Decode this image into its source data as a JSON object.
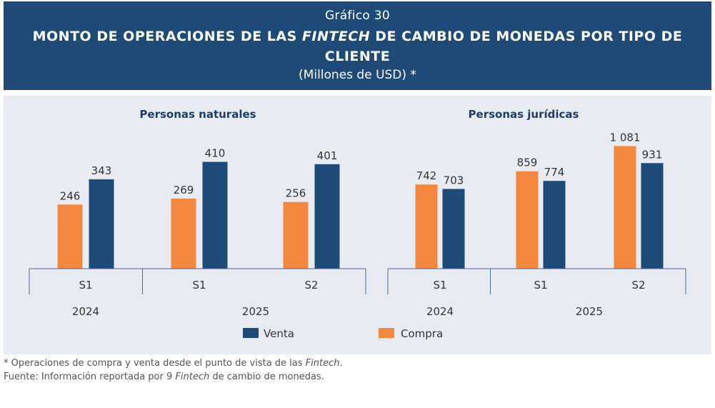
{
  "header": {
    "number": "Gráfico 30",
    "title_part1": "MONTO DE OPERACIONES DE LAS ",
    "title_italic": "FINTECH",
    "title_part2": " DE CAMBIO DE MONEDAS POR TIPO DE",
    "title_line2": "CLIENTE",
    "unit": "(Millones de USD) *"
  },
  "notes": {
    "note1_a": "* Operaciones de compra y venta desde el punto de vista de las ",
    "note1_italic": "Fintech",
    "note1_b": ".",
    "note2_a": "Fuente: Información reportada por 9 ",
    "note2_italic": "Fintech",
    "note2_b": " de cambio de monedas."
  },
  "colors": {
    "compra": "#f4873e",
    "venta": "#1e4a78"
  },
  "chart_data": [
    {
      "type": "bar",
      "title": "Personas naturales",
      "categories": [
        "S1",
        "S1",
        "S2"
      ],
      "years": [
        {
          "label": "2024",
          "span": 1
        },
        {
          "label": "2025",
          "span": 2
        }
      ],
      "series": [
        {
          "name": "Compra",
          "values": [
            246,
            269,
            256
          ],
          "labels": [
            "246",
            "269",
            "256"
          ]
        },
        {
          "name": "Venta",
          "values": [
            343,
            410,
            401
          ],
          "labels": [
            "343",
            "410",
            "401"
          ]
        }
      ]
    },
    {
      "type": "bar",
      "title": "Personas jurídicas",
      "categories": [
        "S1",
        "S1",
        "S2"
      ],
      "years": [
        {
          "label": "2024",
          "span": 1
        },
        {
          "label": "2025",
          "span": 2
        }
      ],
      "series": [
        {
          "name": "Compra",
          "values": [
            742,
            859,
            1081
          ],
          "labels": [
            "742",
            "859",
            "1 081"
          ]
        },
        {
          "name": "Venta",
          "values": [
            703,
            774,
            931
          ],
          "labels": [
            "703",
            "774",
            "931"
          ]
        }
      ]
    }
  ],
  "legend": [
    {
      "name": "Venta",
      "color_key": "venta"
    },
    {
      "name": "Compra",
      "color_key": "compra"
    }
  ]
}
